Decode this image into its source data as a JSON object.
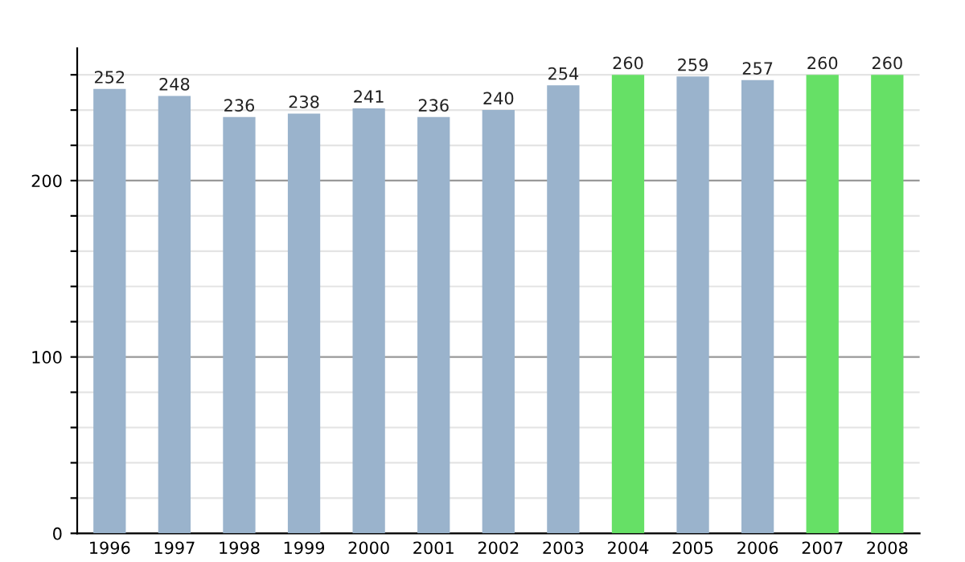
{
  "chart_data": {
    "type": "bar",
    "categories": [
      "1996",
      "1997",
      "1998",
      "1999",
      "2000",
      "2001",
      "2002",
      "2003",
      "2004",
      "2005",
      "2006",
      "2007",
      "2008"
    ],
    "values": [
      252,
      248,
      236,
      238,
      241,
      236,
      240,
      254,
      260,
      259,
      257,
      260,
      260
    ],
    "colors": [
      "#9ab3cc",
      "#9ab3cc",
      "#9ab3cc",
      "#9ab3cc",
      "#9ab3cc",
      "#9ab3cc",
      "#9ab3cc",
      "#9ab3cc",
      "#66e066",
      "#9ab3cc",
      "#9ab3cc",
      "#66e066",
      "#66e066"
    ],
    "ylim": [
      0,
      275
    ],
    "yticks": [
      0,
      {
        "value": 20,
        "label": null
      },
      {
        "value": 40,
        "label": null
      },
      {
        "value": 60,
        "label": null
      },
      {
        "value": 80,
        "label": null
      },
      100,
      {
        "value": 120,
        "label": null
      },
      {
        "value": 140,
        "label": null
      },
      {
        "value": 160,
        "label": null
      },
      {
        "value": 180,
        "label": null
      },
      200,
      {
        "value": 220,
        "label": null
      },
      {
        "value": 240,
        "label": null
      },
      {
        "value": 260,
        "label": null
      }
    ],
    "grid": "y",
    "data_labels": true,
    "legend": false
  }
}
